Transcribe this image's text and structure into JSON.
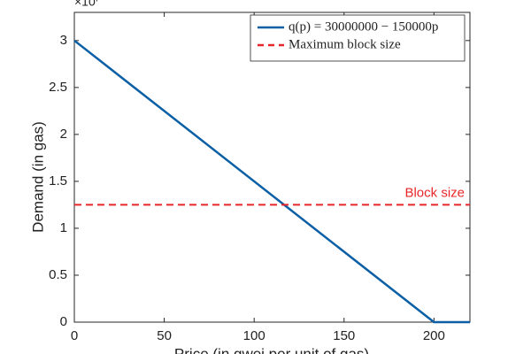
{
  "chart_data": {
    "type": "line",
    "x_label": "Price (in gwei per unit of gas)",
    "y_label": "Demand (in gas)",
    "y_multiplier": {
      "base": "×10",
      "exponent": "7"
    },
    "x": [
      0,
      200,
      220
    ],
    "series": [
      {
        "name": "q(p) = 30000000 − 150000p",
        "color": "#0b5fa5",
        "values": [
          30000000,
          0,
          0
        ]
      }
    ],
    "reference_lines": [
      {
        "name": "Maximum block size",
        "color": "#e8262a",
        "value": 12500000,
        "annotation": "Block size"
      }
    ],
    "xlim": [
      0,
      220
    ],
    "ylim": [
      0,
      33000000
    ],
    "xticks": [
      0,
      50,
      100,
      150,
      200
    ],
    "yticks": [
      0,
      {
        "value": 5000000,
        "label": "0.5"
      },
      {
        "value": 10000000,
        "label": "1"
      },
      {
        "value": 15000000,
        "label": "1.5"
      },
      {
        "value": 20000000,
        "label": "2"
      },
      {
        "value": 25000000,
        "label": "2.5"
      },
      {
        "value": 30000000,
        "label": "3"
      }
    ],
    "legend": "upper right",
    "grid": false
  }
}
